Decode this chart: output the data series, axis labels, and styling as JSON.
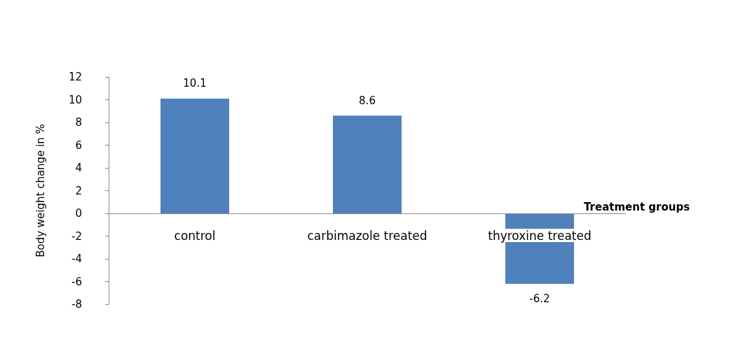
{
  "chart_data": {
    "type": "bar",
    "categories": [
      "control",
      "carbimazole treated",
      "thyroxine treated"
    ],
    "values": [
      10.1,
      8.6,
      -6.2
    ],
    "color": "#4f81bd",
    "xlabel": "Treatment groups",
    "ylabel": "Body weight change in %",
    "ylim": [
      -8,
      12
    ],
    "yticks": [
      -8,
      -6,
      -4,
      -2,
      0,
      2,
      4,
      6,
      8,
      10,
      12
    ],
    "data_labels": true
  }
}
